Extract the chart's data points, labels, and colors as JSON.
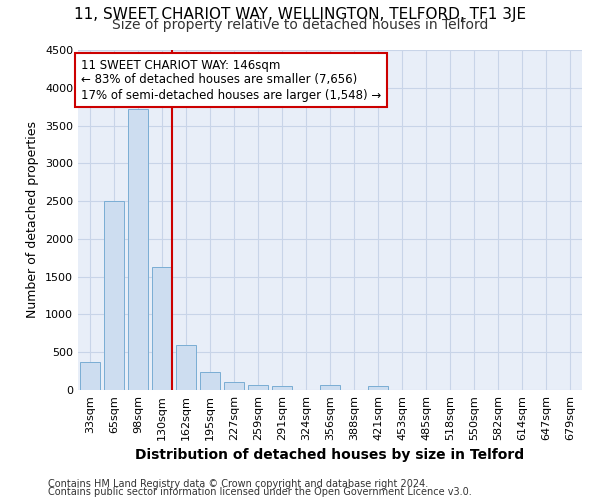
{
  "title1": "11, SWEET CHARIOT WAY, WELLINGTON, TELFORD, TF1 3JE",
  "title2": "Size of property relative to detached houses in Telford",
  "xlabel": "Distribution of detached houses by size in Telford",
  "ylabel": "Number of detached properties",
  "footer1": "Contains HM Land Registry data © Crown copyright and database right 2024.",
  "footer2": "Contains public sector information licensed under the Open Government Licence v3.0.",
  "categories": [
    "33sqm",
    "65sqm",
    "98sqm",
    "130sqm",
    "162sqm",
    "195sqm",
    "227sqm",
    "259sqm",
    "291sqm",
    "324sqm",
    "356sqm",
    "388sqm",
    "421sqm",
    "453sqm",
    "485sqm",
    "518sqm",
    "550sqm",
    "582sqm",
    "614sqm",
    "647sqm",
    "679sqm"
  ],
  "values": [
    370,
    2500,
    3720,
    1630,
    590,
    235,
    100,
    60,
    50,
    0,
    60,
    0,
    50,
    0,
    0,
    0,
    0,
    0,
    0,
    0,
    0
  ],
  "bar_color": "#cdddf0",
  "bar_edge_color": "#7aadd4",
  "grid_color": "#c8d4e8",
  "background_color": "#e8eef8",
  "annotation_text": "11 SWEET CHARIOT WAY: 146sqm\n← 83% of detached houses are smaller (7,656)\n17% of semi-detached houses are larger (1,548) →",
  "annotation_box_color": "#ffffff",
  "annotation_box_edge_color": "#cc0000",
  "marker_line_color": "#cc0000",
  "marker_line_index": 3,
  "ylim": [
    0,
    4500
  ],
  "yticks": [
    0,
    500,
    1000,
    1500,
    2000,
    2500,
    3000,
    3500,
    4000,
    4500
  ],
  "title1_fontsize": 11,
  "title2_fontsize": 10,
  "ylabel_fontsize": 9,
  "xlabel_fontsize": 10,
  "tick_fontsize": 8,
  "footer_fontsize": 7
}
